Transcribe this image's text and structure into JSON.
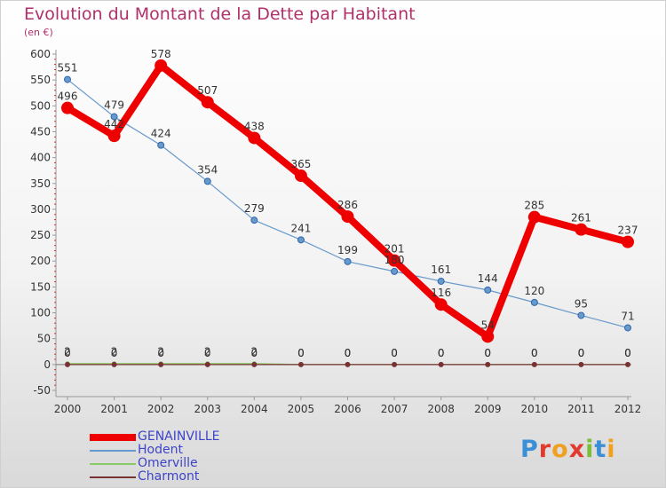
{
  "header": {
    "title": "Evolution du Montant de la Dette par Habitant",
    "subtitle": "(en €)"
  },
  "logo": {
    "text": "Proxiti"
  },
  "colors": {
    "title": "#b0306a",
    "legend_text": "#3d44c8",
    "GENAINVILLE": "#ee0000",
    "Hodent": "#6699cc",
    "Omerville": "#88cc66",
    "Charmont": "#773333"
  },
  "chart_data": {
    "type": "line",
    "title": "Evolution du Montant de la Dette par Habitant",
    "subtitle": "(en €)",
    "xlabel": "",
    "ylabel": "",
    "categories": [
      "2000",
      "2001",
      "2002",
      "2003",
      "2004",
      "2005",
      "2006",
      "2007",
      "2008",
      "2009",
      "2010",
      "2011",
      "2012"
    ],
    "ylim": [
      -50,
      600
    ],
    "yticks": [
      -50,
      0,
      50,
      100,
      150,
      200,
      250,
      300,
      350,
      400,
      450,
      500,
      550,
      600
    ],
    "grid": false,
    "legend_position": "bottom-left",
    "series": [
      {
        "name": "GENAINVILLE",
        "values": [
          496,
          442,
          578,
          507,
          438,
          365,
          286,
          201,
          116,
          54,
          285,
          261,
          237
        ]
      },
      {
        "name": "Hodent",
        "values": [
          551,
          479,
          424,
          354,
          279,
          241,
          199,
          180,
          161,
          144,
          120,
          95,
          71
        ]
      },
      {
        "name": "Omerville",
        "values": [
          2,
          2,
          2,
          2,
          2,
          0,
          0,
          0,
          0,
          0,
          0,
          0,
          0
        ]
      },
      {
        "name": "Charmont",
        "values": [
          0,
          0,
          0,
          0,
          0,
          0,
          0,
          0,
          0,
          0,
          0,
          0,
          0
        ]
      }
    ]
  }
}
